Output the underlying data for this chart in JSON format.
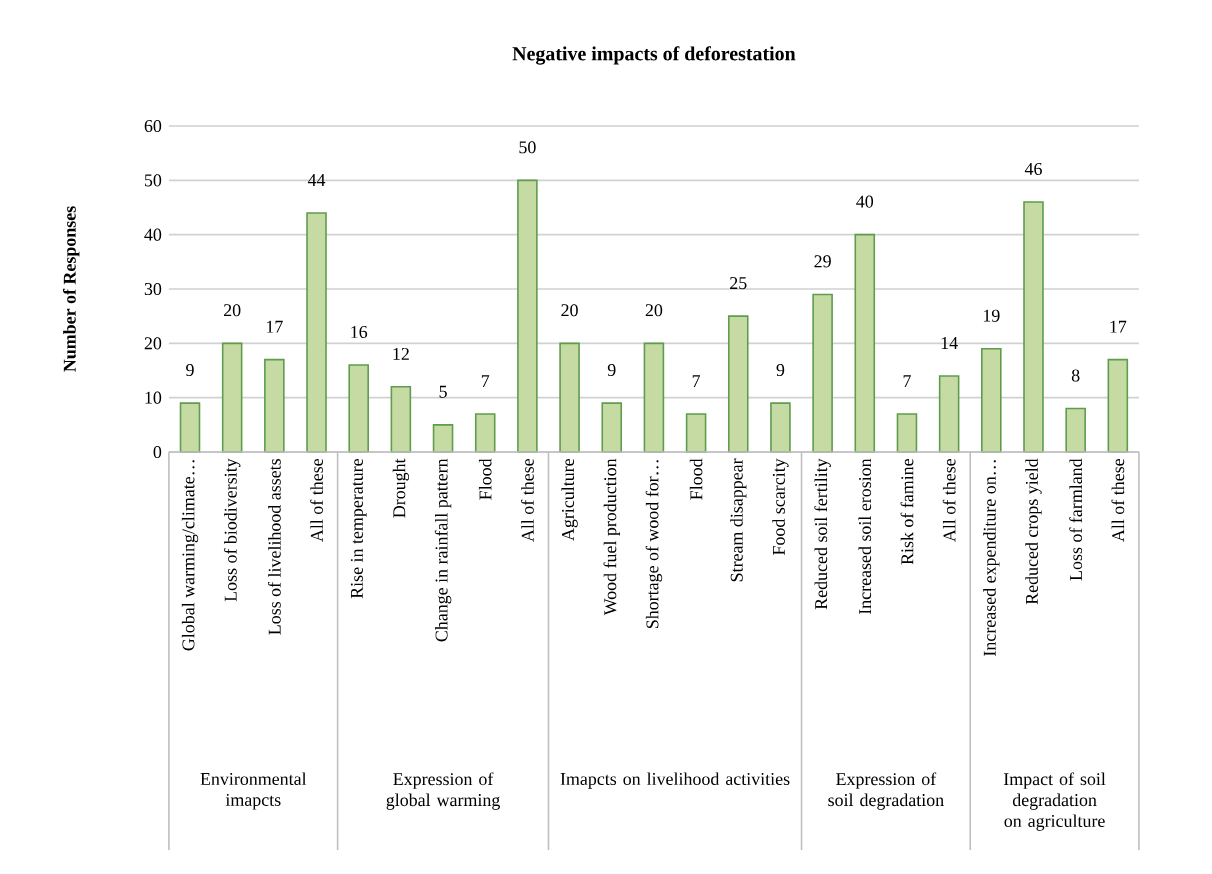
{
  "chart_data": {
    "type": "bar",
    "title": "Negative impacts of deforestation",
    "ylabel": "Number of Responses",
    "categories": [
      "Global warming/climate…",
      "Loss of biodiversity",
      "Loss of livelihood assets",
      "All of these",
      "Rise in temperature",
      "Drought",
      "Change in rainfall pattern",
      "Flood",
      "All of these",
      "Agriculture",
      "Wood fuel production",
      "Shortage of wood for…",
      "Flood",
      "Stream disappear",
      "Food scarcity",
      "Reduced soil fertility",
      "Increased soil erosion",
      "Risk of famine",
      "All of these",
      "Increased expenditure on…",
      "Reduced crops yield",
      "Loss of farmland",
      "All of these"
    ],
    "values": [
      9,
      20,
      17,
      44,
      16,
      12,
      5,
      7,
      50,
      20,
      9,
      20,
      7,
      25,
      9,
      29,
      40,
      7,
      14,
      19,
      46,
      8,
      17
    ],
    "color": "#c6dba3",
    "data_labels": true,
    "ylim": [
      0,
      60
    ],
    "yticks": [
      0,
      10,
      20,
      30,
      40,
      50,
      60
    ],
    "grid": "y",
    "annotations": [
      "Environmental imapcts",
      "Expression of global warming",
      "Imapcts on livelihood activities",
      "Expression of soil degradation",
      "Impact of soil degradation on agriculture"
    ]
  }
}
